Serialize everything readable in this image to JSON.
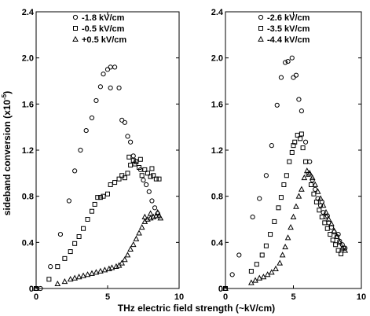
{
  "figure": {
    "xlabel": "THz electric field strength (~kV/cm)",
    "ylabel": "sideband conversion (x10",
    "ylabel_exp": "-5",
    "ylabel_close": ")"
  },
  "chart_data": [
    {
      "type": "scatter",
      "xlim": [
        0,
        10
      ],
      "ylim": [
        0,
        2.4
      ],
      "xticks": [
        "0",
        "5",
        "10"
      ],
      "yticks": [
        "0",
        "0.4",
        "0.8",
        "1.2",
        "1.6",
        "2.0",
        "2.4"
      ],
      "grid": false,
      "legend_position": "top-right",
      "series": [
        {
          "name": "-1.8 kV/cm",
          "marker": "circle",
          "points": [
            [
              0.0,
              0.0
            ],
            [
              0.3,
              0.0
            ],
            [
              1.0,
              0.19
            ],
            [
              1.7,
              0.47
            ],
            [
              2.3,
              0.76
            ],
            [
              2.7,
              1.02
            ],
            [
              3.1,
              1.2
            ],
            [
              3.5,
              1.37
            ],
            [
              3.9,
              1.48
            ],
            [
              4.2,
              1.63
            ],
            [
              4.5,
              1.75
            ],
            [
              4.7,
              1.86
            ],
            [
              5.0,
              1.9
            ],
            [
              5.2,
              1.92
            ],
            [
              5.5,
              1.92
            ],
            [
              5.2,
              1.74
            ],
            [
              5.8,
              1.74
            ],
            [
              6.0,
              1.46
            ],
            [
              6.2,
              1.44
            ],
            [
              6.4,
              1.32
            ],
            [
              6.6,
              1.27
            ],
            [
              6.8,
              1.15
            ],
            [
              7.0,
              1.1
            ],
            [
              7.3,
              1.03
            ],
            [
              7.5,
              0.94
            ],
            [
              7.7,
              0.9
            ],
            [
              7.9,
              0.84
            ],
            [
              8.1,
              0.76
            ],
            [
              8.3,
              0.7
            ],
            [
              8.5,
              0.65
            ]
          ]
        },
        {
          "name": "-0.5 kV/cm",
          "marker": "square",
          "points": [
            [
              0.0,
              0.0
            ],
            [
              0.9,
              0.08
            ],
            [
              1.5,
              0.19
            ],
            [
              2.0,
              0.26
            ],
            [
              2.4,
              0.32
            ],
            [
              2.7,
              0.39
            ],
            [
              3.0,
              0.45
            ],
            [
              3.3,
              0.52
            ],
            [
              3.6,
              0.6
            ],
            [
              3.9,
              0.67
            ],
            [
              4.1,
              0.73
            ],
            [
              4.3,
              0.79
            ],
            [
              4.5,
              0.79
            ],
            [
              4.7,
              0.8
            ],
            [
              5.0,
              0.82
            ],
            [
              5.2,
              0.9
            ],
            [
              5.5,
              0.92
            ],
            [
              5.8,
              0.95
            ],
            [
              6.0,
              0.98
            ],
            [
              6.2,
              0.96
            ],
            [
              6.4,
              1.0
            ],
            [
              6.6,
              1.07
            ],
            [
              6.8,
              1.11
            ],
            [
              7.0,
              1.1
            ],
            [
              7.2,
              1.05
            ],
            [
              7.4,
              0.98
            ],
            [
              7.6,
              1.03
            ],
            [
              7.8,
              1.0
            ],
            [
              8.0,
              0.97
            ],
            [
              8.2,
              0.98
            ],
            [
              8.4,
              0.95
            ],
            [
              8.6,
              0.95
            ],
            [
              6.5,
              1.14
            ],
            [
              6.9,
              1.08
            ],
            [
              7.3,
              1.12
            ],
            [
              8.1,
              1.04
            ]
          ]
        },
        {
          "name": "+0.5 kV/cm",
          "marker": "triangle",
          "points": [
            [
              0.0,
              0.0
            ],
            [
              1.5,
              0.04
            ],
            [
              2.0,
              0.06
            ],
            [
              2.4,
              0.08
            ],
            [
              2.7,
              0.09
            ],
            [
              3.0,
              0.1
            ],
            [
              3.3,
              0.11
            ],
            [
              3.6,
              0.12
            ],
            [
              3.9,
              0.13
            ],
            [
              4.2,
              0.14
            ],
            [
              4.5,
              0.15
            ],
            [
              4.8,
              0.16
            ],
            [
              5.1,
              0.17
            ],
            [
              5.3,
              0.18
            ],
            [
              5.6,
              0.19
            ],
            [
              5.8,
              0.2
            ],
            [
              6.0,
              0.22
            ],
            [
              6.2,
              0.25
            ],
            [
              6.4,
              0.29
            ],
            [
              6.6,
              0.34
            ],
            [
              6.8,
              0.38
            ],
            [
              7.0,
              0.43
            ],
            [
              7.2,
              0.48
            ],
            [
              7.4,
              0.53
            ],
            [
              7.6,
              0.58
            ],
            [
              7.8,
              0.6
            ],
            [
              8.0,
              0.61
            ],
            [
              8.2,
              0.62
            ],
            [
              8.4,
              0.63
            ],
            [
              8.6,
              0.63
            ],
            [
              8.5,
              0.66
            ],
            [
              8.0,
              0.65
            ],
            [
              7.6,
              0.62
            ],
            [
              8.7,
              0.61
            ]
          ]
        }
      ]
    },
    {
      "type": "scatter",
      "xlim": [
        0,
        10
      ],
      "ylim": [
        0,
        2.4
      ],
      "xticks": [
        "0",
        "5",
        "10"
      ],
      "yticks": [
        "0",
        "0.4",
        "0.8",
        "1.2",
        "1.6",
        "2.0",
        "2.4"
      ],
      "grid": false,
      "legend_position": "top-right",
      "series": [
        {
          "name": "-2.6 kV/cm",
          "marker": "circle",
          "points": [
            [
              0.0,
              0.0
            ],
            [
              0.5,
              0.12
            ],
            [
              1.0,
              0.29
            ],
            [
              2.0,
              0.62
            ],
            [
              2.5,
              0.78
            ],
            [
              3.0,
              0.98
            ],
            [
              3.4,
              1.24
            ],
            [
              3.8,
              1.59
            ],
            [
              4.1,
              1.83
            ],
            [
              4.4,
              1.96
            ],
            [
              4.6,
              1.97
            ],
            [
              4.9,
              2.0
            ],
            [
              5.0,
              1.83
            ],
            [
              5.2,
              1.85
            ],
            [
              5.4,
              1.64
            ],
            [
              5.6,
              1.54
            ],
            [
              5.9,
              1.27
            ],
            [
              6.2,
              1.1
            ],
            [
              6.4,
              0.94
            ],
            [
              6.6,
              0.86
            ],
            [
              6.8,
              0.78
            ],
            [
              7.0,
              0.72
            ],
            [
              7.2,
              0.66
            ],
            [
              7.4,
              0.62
            ],
            [
              7.6,
              0.57
            ],
            [
              7.8,
              0.53
            ],
            [
              8.0,
              0.49
            ],
            [
              8.2,
              0.45
            ],
            [
              8.4,
              0.41
            ],
            [
              8.6,
              0.38
            ],
            [
              8.8,
              0.35
            ],
            [
              7.1,
              0.75
            ],
            [
              7.5,
              0.63
            ],
            [
              8.3,
              0.47
            ]
          ]
        },
        {
          "name": "-3.5 kV/cm",
          "marker": "square",
          "points": [
            [
              0.0,
              0.0
            ],
            [
              1.9,
              0.15
            ],
            [
              2.3,
              0.21
            ],
            [
              2.7,
              0.29
            ],
            [
              3.0,
              0.37
            ],
            [
              3.3,
              0.47
            ],
            [
              3.6,
              0.58
            ],
            [
              3.9,
              0.7
            ],
            [
              4.1,
              0.79
            ],
            [
              4.3,
              0.9
            ],
            [
              4.5,
              0.98
            ],
            [
              4.7,
              1.1
            ],
            [
              4.9,
              1.18
            ],
            [
              5.1,
              1.27
            ],
            [
              5.3,
              1.33
            ],
            [
              5.5,
              1.3
            ],
            [
              5.7,
              1.22
            ],
            [
              5.9,
              1.1
            ],
            [
              6.1,
              0.99
            ],
            [
              6.3,
              0.9
            ],
            [
              6.5,
              0.82
            ],
            [
              6.7,
              0.75
            ],
            [
              6.9,
              0.68
            ],
            [
              7.1,
              0.62
            ],
            [
              7.3,
              0.57
            ],
            [
              7.5,
              0.52
            ],
            [
              7.7,
              0.47
            ],
            [
              7.9,
              0.42
            ],
            [
              8.1,
              0.38
            ],
            [
              8.3,
              0.33
            ],
            [
              8.5,
              0.3
            ],
            [
              8.7,
              0.35
            ],
            [
              5.0,
              1.24
            ],
            [
              5.6,
              1.34
            ]
          ]
        },
        {
          "name": "-4.4 kV/cm",
          "marker": "triangle",
          "points": [
            [
              0.0,
              0.0
            ],
            [
              1.9,
              0.05
            ],
            [
              2.2,
              0.07
            ],
            [
              2.5,
              0.09
            ],
            [
              2.8,
              0.1
            ],
            [
              3.1,
              0.12
            ],
            [
              3.4,
              0.14
            ],
            [
              3.7,
              0.17
            ],
            [
              4.0,
              0.22
            ],
            [
              4.2,
              0.29
            ],
            [
              4.4,
              0.36
            ],
            [
              4.6,
              0.44
            ],
            [
              4.8,
              0.53
            ],
            [
              5.0,
              0.62
            ],
            [
              5.2,
              0.71
            ],
            [
              5.4,
              0.8
            ],
            [
              5.6,
              0.86
            ],
            [
              5.8,
              0.96
            ],
            [
              6.0,
              1.02
            ],
            [
              6.2,
              1.0
            ],
            [
              6.4,
              0.96
            ],
            [
              6.6,
              0.9
            ],
            [
              6.8,
              0.84
            ],
            [
              7.0,
              0.78
            ],
            [
              7.2,
              0.72
            ],
            [
              7.4,
              0.66
            ],
            [
              7.6,
              0.6
            ],
            [
              7.8,
              0.56
            ],
            [
              8.0,
              0.5
            ],
            [
              8.2,
              0.45
            ],
            [
              8.4,
              0.4
            ],
            [
              8.6,
              0.35
            ],
            [
              8.8,
              0.33
            ]
          ]
        }
      ]
    }
  ]
}
